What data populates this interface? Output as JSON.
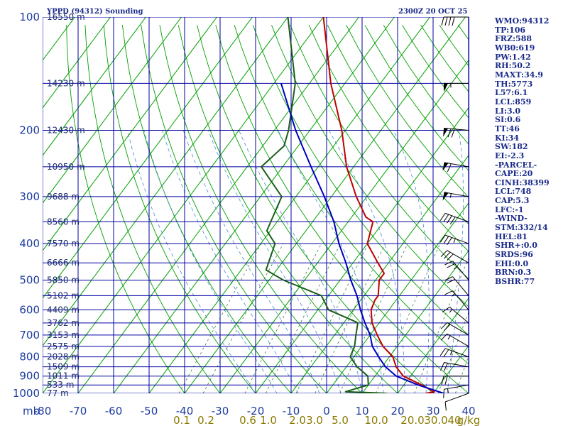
{
  "header": {
    "title": "YPPD (94312) Sounding",
    "time": "2300Z 20 OCT 25"
  },
  "indices": [
    "WMO:94312",
    "TP:106",
    "FRZ:588",
    "WB0:619",
    "PW:1.42",
    "RH:50.2",
    "MAXT:34.9",
    "TH:5773",
    "L57:6.1",
    "LCL:859",
    "LI:3.0",
    "SI:0.6",
    "TT:46",
    "KI:34",
    "SW:182",
    "EI:-2.3",
    "-PARCEL-",
    "CAPE:20",
    "CINH:38399",
    "LCL:748",
    "CAP:5.3",
    "LFC:-1",
    "-WIND-",
    "STM:332/14",
    "HEL:81",
    "SHR+:0.0",
    "SRDS:96",
    "EHI:0.0",
    "BRN:0.3",
    "BSHR:77"
  ],
  "colors": {
    "temperature": "#c00000",
    "dewpoint": "#1a5e1a",
    "parcel": "#0000c0",
    "grid": "#0000a0",
    "dry_adiabat": "#00a000",
    "mixing_ratio": "#3a7a3a",
    "moist_adiabat": "#4a8ad0"
  },
  "chart_data": {
    "type": "line",
    "title": "",
    "xlabel": "",
    "ylabel": "mb",
    "pressure_axis": [
      100,
      200,
      300,
      400,
      500,
      600,
      700,
      800,
      900,
      1000
    ],
    "pressure_labels": [
      "100",
      "200",
      "300",
      "400",
      "500",
      "600",
      "700",
      "800",
      "900",
      "1000"
    ],
    "temperature_axis": [
      -80,
      -70,
      -60,
      -50,
      -40,
      -30,
      -20,
      -10,
      0,
      10,
      20,
      30,
      40
    ],
    "temperature_labels": [
      "-80",
      "-70",
      "-60",
      "-50",
      "-40",
      "-30",
      "-20",
      "-10",
      "0",
      "10",
      "20",
      "30",
      "40"
    ],
    "mixing_ratio_axis": [
      0.1,
      0.2,
      0.6,
      1.0,
      2.0,
      3.0,
      5.0,
      10.0,
      20.0,
      30.0,
      40.0
    ],
    "mixing_ratio_labels": [
      "0.1",
      "0.2",
      "0.6",
      "1.0",
      "2.0",
      "3.0",
      "5.0",
      "10.0",
      "20.0",
      "30.0",
      "40",
      "g/kg"
    ],
    "height_labels": [
      {
        "p": 100,
        "text": "16550 m"
      },
      {
        "p": 150,
        "text": "14230 m"
      },
      {
        "p": 200,
        "text": "12430 m"
      },
      {
        "p": 250,
        "text": "10950 m"
      },
      {
        "p": 300,
        "text": "9688 m"
      },
      {
        "p": 350,
        "text": "8560 m"
      },
      {
        "p": 400,
        "text": "7570 m"
      },
      {
        "p": 450,
        "text": "6666 m"
      },
      {
        "p": 500,
        "text": "5850 m"
      },
      {
        "p": 550,
        "text": "5102 m"
      },
      {
        "p": 600,
        "text": "4409 m"
      },
      {
        "p": 650,
        "text": "3762 m"
      },
      {
        "p": 700,
        "text": "3153 m"
      },
      {
        "p": 750,
        "text": "2575 m"
      },
      {
        "p": 800,
        "text": "2028 m"
      },
      {
        "p": 850,
        "text": "1509 m"
      },
      {
        "p": 900,
        "text": "1011 m"
      },
      {
        "p": 950,
        "text": "533 m"
      },
      {
        "p": 1000,
        "text": "77 m"
      }
    ],
    "series": [
      {
        "key": "temperature",
        "points": [
          [
            1000,
            28
          ],
          [
            990,
            30
          ],
          [
            950,
            25
          ],
          [
            900,
            18
          ],
          [
            850,
            14
          ],
          [
            800,
            11
          ],
          [
            750,
            6
          ],
          [
            700,
            2
          ],
          [
            650,
            -2
          ],
          [
            600,
            -5
          ],
          [
            565,
            -6
          ],
          [
            550,
            -6
          ],
          [
            500,
            -9
          ],
          [
            490,
            -9
          ],
          [
            480,
            -9
          ],
          [
            450,
            -13
          ],
          [
            400,
            -20
          ],
          [
            350,
            -23
          ],
          [
            340,
            -26
          ],
          [
            300,
            -33
          ],
          [
            250,
            -42
          ],
          [
            200,
            -51
          ],
          [
            150,
            -64
          ],
          [
            100,
            -80
          ]
        ]
      },
      {
        "key": "dewpoint",
        "points": [
          [
            1000,
            17
          ],
          [
            990,
            5
          ],
          [
            950,
            10
          ],
          [
            900,
            8
          ],
          [
            850,
            3
          ],
          [
            800,
            -1
          ],
          [
            750,
            -2
          ],
          [
            700,
            -4
          ],
          [
            650,
            -6
          ],
          [
            640,
            -8
          ],
          [
            600,
            -17
          ],
          [
            550,
            -22
          ],
          [
            500,
            -36
          ],
          [
            470,
            -43
          ],
          [
            400,
            -46
          ],
          [
            370,
            -51
          ],
          [
            300,
            -54
          ],
          [
            250,
            -66
          ],
          [
            220,
            -64
          ],
          [
            200,
            -66
          ],
          [
            150,
            -74
          ],
          [
            100,
            -90
          ]
        ]
      },
      {
        "key": "parcel",
        "points": [
          [
            1000,
            33
          ],
          [
            950,
            24
          ],
          [
            900,
            16
          ],
          [
            850,
            11
          ],
          [
            800,
            7
          ],
          [
            750,
            3
          ],
          [
            700,
            0
          ],
          [
            650,
            -4
          ],
          [
            600,
            -8
          ],
          [
            550,
            -12
          ],
          [
            500,
            -17
          ],
          [
            450,
            -22
          ],
          [
            400,
            -28
          ],
          [
            350,
            -34
          ],
          [
            300,
            -42
          ],
          [
            250,
            -52
          ],
          [
            200,
            -64
          ],
          [
            150,
            -78
          ]
        ]
      }
    ],
    "wind_barbs": [
      {
        "p": 1000,
        "dir": 250,
        "spd": 10
      },
      {
        "p": 950,
        "dir": 260,
        "spd": 15
      },
      {
        "p": 900,
        "dir": 270,
        "spd": 20
      },
      {
        "p": 850,
        "dir": 280,
        "spd": 20
      },
      {
        "p": 800,
        "dir": 290,
        "spd": 25
      },
      {
        "p": 750,
        "dir": 300,
        "spd": 15
      },
      {
        "p": 700,
        "dir": 300,
        "spd": 20
      },
      {
        "p": 650,
        "dir": 310,
        "spd": 15
      },
      {
        "p": 600,
        "dir": 320,
        "spd": 15
      },
      {
        "p": 550,
        "dir": 320,
        "spd": 20
      },
      {
        "p": 500,
        "dir": 320,
        "spd": 25
      },
      {
        "p": 450,
        "dir": 300,
        "spd": 30
      },
      {
        "p": 400,
        "dir": 290,
        "spd": 35
      },
      {
        "p": 350,
        "dir": 290,
        "spd": 40
      },
      {
        "p": 300,
        "dir": 280,
        "spd": 55
      },
      {
        "p": 250,
        "dir": 280,
        "spd": 60
      },
      {
        "p": 200,
        "dir": 275,
        "spd": 70
      },
      {
        "p": 150,
        "dir": 270,
        "spd": 55
      },
      {
        "p": 100,
        "dir": 270,
        "spd": 40
      }
    ]
  }
}
